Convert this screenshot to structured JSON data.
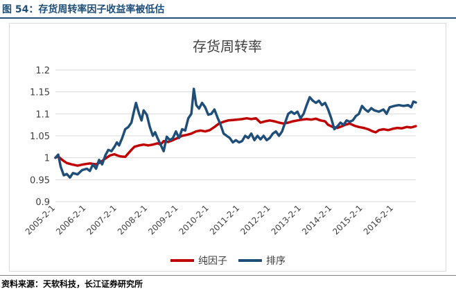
{
  "header": {
    "figure_title": "图 54：存货周转率因子收益率被低估"
  },
  "footer": {
    "source": "资料来源：天软科技，长江证券研究所"
  },
  "colors": {
    "title": "#1f4e79",
    "series_factor": "#c00000",
    "series_rank": "#1f4e79",
    "grid": "#d9d9d9"
  },
  "chart_data": {
    "type": "line",
    "title": "存货周转率",
    "grid": true,
    "legend_position": "bottom",
    "ylim": [
      0.9,
      1.2
    ],
    "y_ticks": [
      "0.9",
      "0.95",
      "1",
      "1.05",
      "1.1",
      "1.15",
      "1.2"
    ],
    "x_tick_labels": [
      "2005-2-1",
      "2006-2-1",
      "2007-2-1",
      "2008-2-1",
      "2009-2-1",
      "2010-2-1",
      "2011-2-1",
      "2012-2-1",
      "2013-2-1",
      "2014-2-1",
      "2015-2-1",
      "2016-2-1"
    ],
    "x_start_year": 2005.08,
    "x_end_year": 2016.8,
    "series": [
      {
        "name": "纯因子",
        "color": "#c00000",
        "points": [
          [
            2005.08,
            1.0
          ],
          [
            2005.17,
            1.003
          ],
          [
            2005.3,
            0.995
          ],
          [
            2005.45,
            0.988
          ],
          [
            2005.6,
            0.985
          ],
          [
            2005.8,
            0.982
          ],
          [
            2006.0,
            0.985
          ],
          [
            2006.2,
            0.987
          ],
          [
            2006.4,
            0.985
          ],
          [
            2006.55,
            0.99
          ],
          [
            2006.7,
            0.998
          ],
          [
            2006.85,
            1.005
          ],
          [
            2007.0,
            1.008
          ],
          [
            2007.1,
            1.005
          ],
          [
            2007.2,
            1.003
          ],
          [
            2007.35,
            1.002
          ],
          [
            2007.45,
            1.01
          ],
          [
            2007.55,
            1.018
          ],
          [
            2007.65,
            1.025
          ],
          [
            2007.8,
            1.028
          ],
          [
            2007.95,
            1.03
          ],
          [
            2008.1,
            1.028
          ],
          [
            2008.25,
            1.03
          ],
          [
            2008.4,
            1.033
          ],
          [
            2008.5,
            1.03
          ],
          [
            2008.6,
            1.038
          ],
          [
            2008.75,
            1.036
          ],
          [
            2008.9,
            1.04
          ],
          [
            2009.05,
            1.045
          ],
          [
            2009.2,
            1.05
          ],
          [
            2009.35,
            1.052
          ],
          [
            2009.5,
            1.055
          ],
          [
            2009.65,
            1.06
          ],
          [
            2009.8,
            1.062
          ],
          [
            2009.95,
            1.06
          ],
          [
            2010.1,
            1.063
          ],
          [
            2010.25,
            1.07
          ],
          [
            2010.4,
            1.078
          ],
          [
            2010.55,
            1.082
          ],
          [
            2010.7,
            1.085
          ],
          [
            2010.85,
            1.086
          ],
          [
            2011.0,
            1.087
          ],
          [
            2011.15,
            1.088
          ],
          [
            2011.3,
            1.09
          ],
          [
            2011.45,
            1.088
          ],
          [
            2011.6,
            1.09
          ],
          [
            2011.75,
            1.08
          ],
          [
            2011.9,
            1.083
          ],
          [
            2012.05,
            1.085
          ],
          [
            2012.2,
            1.083
          ],
          [
            2012.35,
            1.08
          ],
          [
            2012.5,
            1.078
          ],
          [
            2012.65,
            1.08
          ],
          [
            2012.8,
            1.083
          ],
          [
            2012.95,
            1.085
          ],
          [
            2013.1,
            1.087
          ],
          [
            2013.25,
            1.088
          ],
          [
            2013.4,
            1.087
          ],
          [
            2013.55,
            1.089
          ],
          [
            2013.7,
            1.085
          ],
          [
            2013.85,
            1.083
          ],
          [
            2013.95,
            1.075
          ],
          [
            2014.1,
            1.07
          ],
          [
            2014.25,
            1.068
          ],
          [
            2014.4,
            1.072
          ],
          [
            2014.5,
            1.075
          ],
          [
            2014.65,
            1.078
          ],
          [
            2014.8,
            1.073
          ],
          [
            2014.95,
            1.07
          ],
          [
            2015.1,
            1.068
          ],
          [
            2015.25,
            1.065
          ],
          [
            2015.4,
            1.06
          ],
          [
            2015.5,
            1.058
          ],
          [
            2015.6,
            1.063
          ],
          [
            2015.75,
            1.065
          ],
          [
            2015.9,
            1.063
          ],
          [
            2016.05,
            1.066
          ],
          [
            2016.2,
            1.068
          ],
          [
            2016.35,
            1.067
          ],
          [
            2016.5,
            1.07
          ],
          [
            2016.65,
            1.069
          ],
          [
            2016.8,
            1.072
          ]
        ]
      },
      {
        "name": "排序",
        "color": "#1f4e79",
        "points": [
          [
            2005.08,
            1.0
          ],
          [
            2005.17,
            1.007
          ],
          [
            2005.25,
            0.98
          ],
          [
            2005.35,
            0.96
          ],
          [
            2005.45,
            0.963
          ],
          [
            2005.55,
            0.955
          ],
          [
            2005.65,
            0.965
          ],
          [
            2005.8,
            0.962
          ],
          [
            2005.95,
            0.972
          ],
          [
            2006.1,
            0.975
          ],
          [
            2006.2,
            0.97
          ],
          [
            2006.3,
            0.985
          ],
          [
            2006.4,
            0.975
          ],
          [
            2006.5,
            0.995
          ],
          [
            2006.6,
            0.985
          ],
          [
            2006.7,
            1.005
          ],
          [
            2006.8,
            1.018
          ],
          [
            2006.9,
            1.015
          ],
          [
            2007.0,
            1.025
          ],
          [
            2007.08,
            1.035
          ],
          [
            2007.15,
            1.028
          ],
          [
            2007.25,
            1.045
          ],
          [
            2007.35,
            1.065
          ],
          [
            2007.45,
            1.07
          ],
          [
            2007.55,
            1.08
          ],
          [
            2007.62,
            1.102
          ],
          [
            2007.7,
            1.125
          ],
          [
            2007.8,
            1.1
          ],
          [
            2007.88,
            1.085
          ],
          [
            2007.95,
            1.108
          ],
          [
            2008.05,
            1.098
          ],
          [
            2008.15,
            1.07
          ],
          [
            2008.25,
            1.05
          ],
          [
            2008.32,
            1.058
          ],
          [
            2008.4,
            1.045
          ],
          [
            2008.5,
            1.03
          ],
          [
            2008.6,
            1.015
          ],
          [
            2008.7,
            1.048
          ],
          [
            2008.8,
            1.04
          ],
          [
            2008.9,
            1.045
          ],
          [
            2009.0,
            1.06
          ],
          [
            2009.1,
            1.045
          ],
          [
            2009.2,
            1.065
          ],
          [
            2009.3,
            1.062
          ],
          [
            2009.4,
            1.09
          ],
          [
            2009.5,
            1.1
          ],
          [
            2009.58,
            1.157
          ],
          [
            2009.66,
            1.12
          ],
          [
            2009.75,
            1.112
          ],
          [
            2009.85,
            1.125
          ],
          [
            2009.95,
            1.115
          ],
          [
            2010.05,
            1.098
          ],
          [
            2010.15,
            1.1
          ],
          [
            2010.25,
            1.11
          ],
          [
            2010.35,
            1.092
          ],
          [
            2010.45,
            1.075
          ],
          [
            2010.55,
            1.055
          ],
          [
            2010.65,
            1.05
          ],
          [
            2010.75,
            1.045
          ],
          [
            2010.85,
            1.035
          ],
          [
            2010.95,
            1.04
          ],
          [
            2011.05,
            1.035
          ],
          [
            2011.15,
            1.038
          ],
          [
            2011.25,
            1.05
          ],
          [
            2011.35,
            1.045
          ],
          [
            2011.45,
            1.055
          ],
          [
            2011.55,
            1.04
          ],
          [
            2011.65,
            1.05
          ],
          [
            2011.75,
            1.042
          ],
          [
            2011.85,
            1.05
          ],
          [
            2011.95,
            1.04
          ],
          [
            2012.05,
            1.045
          ],
          [
            2012.15,
            1.055
          ],
          [
            2012.25,
            1.06
          ],
          [
            2012.35,
            1.05
          ],
          [
            2012.45,
            1.06
          ],
          [
            2012.55,
            1.08
          ],
          [
            2012.65,
            1.1
          ],
          [
            2012.75,
            1.105
          ],
          [
            2012.85,
            1.1
          ],
          [
            2012.95,
            1.105
          ],
          [
            2013.05,
            1.09
          ],
          [
            2013.15,
            1.1
          ],
          [
            2013.25,
            1.12
          ],
          [
            2013.35,
            1.138
          ],
          [
            2013.45,
            1.13
          ],
          [
            2013.55,
            1.125
          ],
          [
            2013.65,
            1.13
          ],
          [
            2013.75,
            1.12
          ],
          [
            2013.85,
            1.125
          ],
          [
            2013.95,
            1.11
          ],
          [
            2014.05,
            1.09
          ],
          [
            2014.15,
            1.065
          ],
          [
            2014.25,
            1.072
          ],
          [
            2014.35,
            1.08
          ],
          [
            2014.45,
            1.075
          ],
          [
            2014.55,
            1.085
          ],
          [
            2014.65,
            1.082
          ],
          [
            2014.75,
            1.085
          ],
          [
            2014.85,
            1.095
          ],
          [
            2014.95,
            1.1
          ],
          [
            2015.05,
            1.118
          ],
          [
            2015.15,
            1.11
          ],
          [
            2015.25,
            1.105
          ],
          [
            2015.35,
            1.113
          ],
          [
            2015.45,
            1.108
          ],
          [
            2015.6,
            1.105
          ],
          [
            2015.75,
            1.11
          ],
          [
            2015.85,
            1.1
          ],
          [
            2015.95,
            1.115
          ],
          [
            2016.1,
            1.118
          ],
          [
            2016.25,
            1.12
          ],
          [
            2016.4,
            1.118
          ],
          [
            2016.55,
            1.12
          ],
          [
            2016.65,
            1.115
          ],
          [
            2016.72,
            1.128
          ],
          [
            2016.8,
            1.126
          ]
        ]
      }
    ]
  }
}
